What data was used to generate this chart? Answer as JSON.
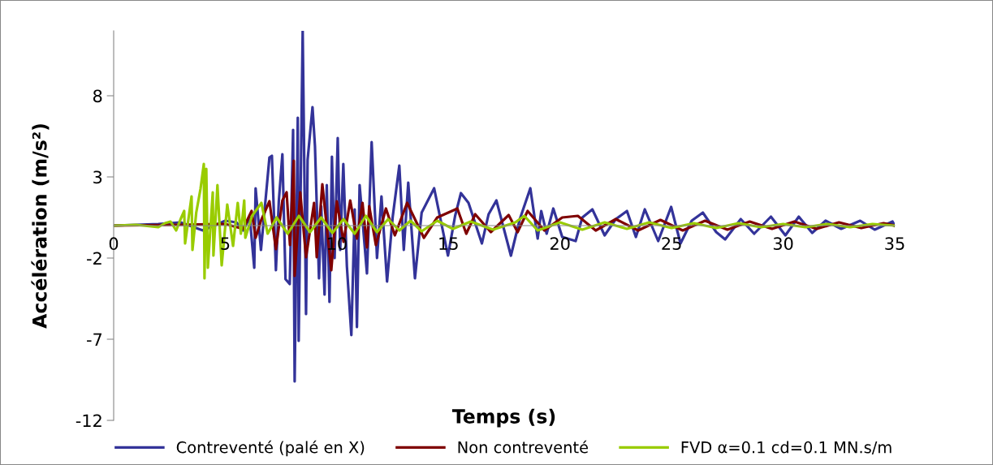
{
  "chart_data": {
    "type": "line",
    "xlabel": "Temps (s)",
    "ylabel": "Accélération (m/s²)",
    "xlim": [
      0,
      35
    ],
    "xticks": [
      0,
      5,
      10,
      15,
      20,
      25,
      30,
      35
    ],
    "ylim": [
      -12,
      12
    ],
    "yticks": [
      -12,
      -7,
      -2,
      3,
      8
    ],
    "grid": false,
    "legend": "bottom",
    "marker": "none",
    "line_style": "solid",
    "series": [
      {
        "name": "Contreventé (palé en X)",
        "color": "#333399",
        "x": [
          0,
          2,
          3,
          4,
          5,
          5.5,
          5.8,
          6.1,
          6.3,
          6.36,
          6.6,
          6.98,
          7.09,
          7.27,
          7.4,
          7.56,
          7.7,
          7.89,
          8.04,
          8.11,
          8.25,
          8.29,
          8.47,
          8.62,
          8.69,
          8.91,
          9.02,
          9.2,
          9.3,
          9.45,
          9.55,
          9.67,
          9.78,
          9.9,
          10.04,
          10.15,
          10.29,
          10.45,
          10.65,
          10.8,
          10.9,
          11.02,
          11.35,
          11.56,
          11.8,
          12.0,
          12.25,
          12.5,
          12.8,
          13.0,
          13.2,
          13.5,
          13.8,
          14.36,
          14.98,
          15.3,
          15.56,
          15.9,
          16.5,
          16.8,
          17.15,
          17.8,
          18.2,
          18.67,
          19.0,
          19.16,
          19.4,
          19.7,
          20.1,
          20.7,
          21.0,
          21.45,
          22.0,
          22.5,
          23.0,
          23.4,
          23.8,
          24.4,
          24.98,
          25.4,
          25.9,
          26.4,
          27.0,
          27.4,
          28.1,
          28.7,
          29.45,
          30.1,
          30.7,
          31.3,
          31.9,
          32.6,
          33.45,
          34.1,
          34.9,
          35
        ],
        "values": [
          0,
          0.1,
          0.2,
          -0.3,
          0.3,
          0.2,
          -0.3,
          0.5,
          -2.6,
          2.3,
          -1.5,
          4.2,
          4.3,
          -2.75,
          1.5,
          4.4,
          -3.3,
          -3.6,
          5.9,
          -9.6,
          6.65,
          -7.1,
          12,
          -5.45,
          4.05,
          7.3,
          4.9,
          -3.25,
          1.2,
          -4.25,
          2.5,
          -4.7,
          4.25,
          -2.0,
          5.4,
          -1.5,
          3.8,
          -2.5,
          -6.75,
          1.0,
          -6.25,
          2.5,
          -2.95,
          5.15,
          -2.0,
          1.8,
          -3.45,
          0.5,
          3.7,
          -1.5,
          2.65,
          -3.25,
          0.8,
          2.3,
          -1.85,
          0.6,
          2.0,
          1.4,
          -1.1,
          0.7,
          1.55,
          -1.85,
          0.4,
          2.3,
          -0.8,
          0.9,
          -0.5,
          1.05,
          -0.7,
          -0.95,
          0.5,
          1.0,
          -0.6,
          0.4,
          0.9,
          -0.7,
          1.0,
          -0.95,
          1.15,
          -1.1,
          0.3,
          0.8,
          -0.4,
          -0.85,
          0.4,
          -0.5,
          0.55,
          -0.6,
          0.55,
          -0.45,
          0.3,
          -0.2,
          0.3,
          -0.25,
          0.25,
          0
        ]
      },
      {
        "name": "Non contreventé",
        "color": "#7f0000",
        "x": [
          0,
          3,
          5,
          5.8,
          6.18,
          6.36,
          6.6,
          6.98,
          7.27,
          7.56,
          7.75,
          7.9,
          8.07,
          8.11,
          8.36,
          8.62,
          8.98,
          9.1,
          9.35,
          9.75,
          10.0,
          10.3,
          10.6,
          10.9,
          11.15,
          11.35,
          11.45,
          11.75,
          12.2,
          12.6,
          13.15,
          13.9,
          14.5,
          15.4,
          15.8,
          16.2,
          16.9,
          17.7,
          18.1,
          18.55,
          19.3,
          20.1,
          20.8,
          21.6,
          22.5,
          23.5,
          24.5,
          25.5,
          26.5,
          27.5,
          28.5,
          29.5,
          30.5,
          31.5,
          32.5,
          33.5,
          34.5,
          35
        ],
        "values": [
          0,
          0.05,
          0.1,
          -0.2,
          0.9,
          -0.75,
          0.3,
          1.5,
          -1.45,
          1.55,
          2.05,
          -1.2,
          4.0,
          -3.1,
          2.05,
          -1.95,
          1.4,
          -1.95,
          2.55,
          -2.75,
          1.5,
          -1.0,
          1.55,
          -0.8,
          1.4,
          -1.35,
          1.2,
          -1.2,
          1.05,
          -0.6,
          1.4,
          -0.75,
          0.5,
          1.05,
          -0.5,
          0.7,
          -0.4,
          0.65,
          -0.4,
          0.9,
          -0.3,
          0.5,
          0.6,
          -0.3,
          0.4,
          -0.3,
          0.35,
          -0.3,
          0.3,
          -0.25,
          0.25,
          -0.2,
          0.25,
          -0.2,
          0.2,
          -0.15,
          0.15,
          0
        ]
      },
      {
        "name": "FVD α=0.1 cd=0.1 MN.s/m",
        "color": "#99cc00",
        "x": [
          0,
          1,
          2,
          2.3,
          2.55,
          2.8,
          3.0,
          3.16,
          3.2,
          3.49,
          3.53,
          3.7,
          3.89,
          4.04,
          4.07,
          4.15,
          4.22,
          4.44,
          4.47,
          4.65,
          4.84,
          5.09,
          5.35,
          5.56,
          5.7,
          5.85,
          5.9,
          6.2,
          6.62,
          6.9,
          7.3,
          7.8,
          8.3,
          8.8,
          9.3,
          9.8,
          10.3,
          10.8,
          11.3,
          11.8,
          12.3,
          12.8,
          13.3,
          13.8,
          14.5,
          15.2,
          16,
          17,
          18,
          18.4,
          19,
          20,
          21,
          22,
          23,
          24,
          25,
          26,
          27,
          28,
          29,
          30,
          31,
          32,
          33,
          34,
          35
        ],
        "values": [
          0,
          0.05,
          -0.1,
          0.15,
          0.25,
          -0.3,
          0.4,
          0.9,
          -1.1,
          1.8,
          -1.5,
          0.8,
          2.25,
          3.8,
          -3.25,
          3.5,
          -2.6,
          2.05,
          -1.85,
          2.5,
          -2.45,
          1.3,
          -1.25,
          1.4,
          -0.5,
          1.55,
          -0.75,
          0.6,
          1.4,
          -0.5,
          0.5,
          -0.5,
          0.6,
          -0.4,
          0.5,
          -0.45,
          0.4,
          -0.5,
          0.6,
          -0.4,
          0.4,
          -0.3,
          0.3,
          -0.35,
          0.3,
          -0.2,
          0.25,
          -0.25,
          0.2,
          0.6,
          -0.3,
          0.2,
          -0.25,
          0.2,
          -0.2,
          0.2,
          -0.15,
          0.15,
          -0.15,
          0.15,
          -0.1,
          0.1,
          -0.1,
          0.1,
          -0.1,
          0.1,
          0
        ]
      }
    ]
  }
}
